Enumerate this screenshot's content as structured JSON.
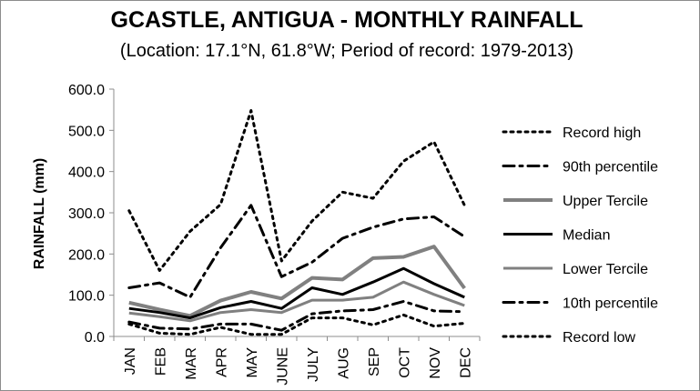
{
  "chart_data": {
    "type": "line",
    "title": "GCASTLE, ANTIGUA - MONTHLY RAINFALL",
    "subtitle": "(Location: 17.1°N, 61.8°W; Period of record: 1979-2013)",
    "ylabel": "RAINFALL (mm)",
    "xlabel": "",
    "ylim": [
      0,
      600
    ],
    "y_ticks": [
      "0.0",
      "100.0",
      "200.0",
      "300.0",
      "400.0",
      "500.0",
      "600.0"
    ],
    "categories": [
      "JAN",
      "FEB",
      "MAR",
      "APR",
      "MAY",
      "JUNE",
      "JULY",
      "AUG",
      "SEP",
      "OCT",
      "NOV",
      "DEC"
    ],
    "legend_position": "right",
    "grid": false,
    "series": [
      {
        "name": "Record high",
        "style": "dot",
        "color": "#000000",
        "width": 3,
        "values": [
          305,
          160,
          255,
          320,
          548,
          183,
          280,
          350,
          335,
          425,
          472,
          318
        ]
      },
      {
        "name": "90th percentile",
        "style": "dashdot",
        "color": "#000000",
        "width": 3,
        "values": [
          118,
          130,
          95,
          215,
          318,
          145,
          180,
          238,
          265,
          285,
          290,
          242
        ]
      },
      {
        "name": "Upper Tercile",
        "style": "solid",
        "color": "#808080",
        "width": 4,
        "values": [
          82,
          65,
          50,
          87,
          108,
          92,
          142,
          138,
          190,
          193,
          218,
          117
        ]
      },
      {
        "name": "Median",
        "style": "solid",
        "color": "#000000",
        "width": 3,
        "values": [
          68,
          58,
          45,
          70,
          85,
          68,
          118,
          102,
          132,
          165,
          128,
          95
        ]
      },
      {
        "name": "Lower Tercile",
        "style": "solid",
        "color": "#808080",
        "width": 3,
        "values": [
          57,
          48,
          38,
          58,
          65,
          58,
          88,
          88,
          95,
          132,
          102,
          75
        ]
      },
      {
        "name": "10th percentile",
        "style": "dashdot",
        "color": "#000000",
        "width": 3,
        "values": [
          35,
          20,
          18,
          30,
          30,
          15,
          55,
          62,
          65,
          85,
          62,
          60
        ]
      },
      {
        "name": "Record low",
        "style": "dot",
        "color": "#000000",
        "width": 3,
        "values": [
          30,
          8,
          5,
          22,
          5,
          5,
          45,
          45,
          28,
          52,
          25,
          32
        ]
      }
    ]
  }
}
